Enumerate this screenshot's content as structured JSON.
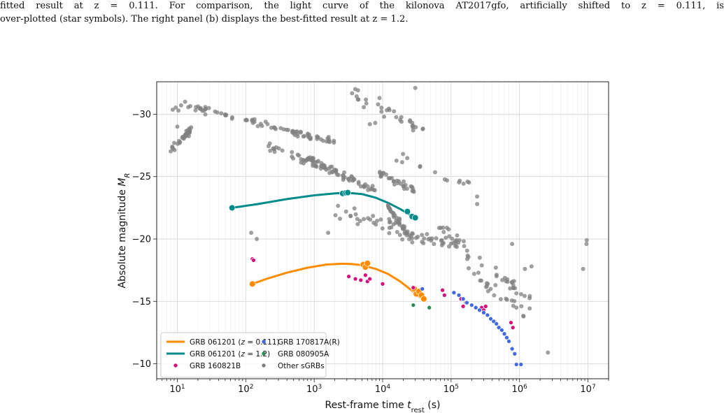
{
  "caption": {
    "line1": "fitted result at z = 0.111. For comparison, the light curve of the kilonova AT2017gfo, artificially shifted to z = 0.111, is",
    "line2": "over-plotted (star symbols). The right panel (b) displays the best-fitted result at z = 1.2."
  },
  "chart_data": {
    "type": "scatter",
    "xlabel": "Rest-frame time t_rest (s)",
    "ylabel": "Absolute magnitude M_R",
    "x_scale": "log",
    "xlim": [
      5,
      20000000
    ],
    "ylim": [
      -8.8,
      -32.6
    ],
    "x_ticks": [
      10,
      100,
      1000,
      10000,
      100000,
      1000000,
      10000000
    ],
    "x_tick_labels": [
      "10^1",
      "10^2",
      "10^3",
      "10^4",
      "10^5",
      "10^6",
      "10^7"
    ],
    "y_ticks": [
      -30,
      -25,
      -20,
      -15,
      -10
    ],
    "y_tick_labels": [
      "−30",
      "−25",
      "−20",
      "−15",
      "−10"
    ],
    "grid": true,
    "legend_position": "lower-left",
    "colors": {
      "orange": "#ff8c00",
      "teal": "#008b8b",
      "magenta": "#d6107c",
      "blue": "#4169e1",
      "green": "#2e8b57",
      "gray": "#808080"
    },
    "series": [
      {
        "name": "GRB 061201 (z = 0.111)",
        "kind": "line",
        "color": "#ff8c00",
        "points": [
          [
            125,
            -16.4
          ],
          [
            200,
            -16.8
          ],
          [
            400,
            -17.3
          ],
          [
            800,
            -17.7
          ],
          [
            1500,
            -17.95
          ],
          [
            2500,
            -18.02
          ],
          [
            3500,
            -18.0
          ],
          [
            5000,
            -17.9
          ],
          [
            8000,
            -17.6
          ],
          [
            12000,
            -17.2
          ],
          [
            18000,
            -16.6
          ],
          [
            25000,
            -16.0
          ],
          [
            32000,
            -15.5
          ],
          [
            38000,
            -15.2
          ]
        ]
      },
      {
        "name": "GRB 061201 (z = 1.2)",
        "kind": "line",
        "color": "#008b8b",
        "points": [
          [
            63,
            -22.5
          ],
          [
            150,
            -22.8
          ],
          [
            400,
            -23.2
          ],
          [
            1000,
            -23.5
          ],
          [
            2000,
            -23.65
          ],
          [
            3000,
            -23.7
          ],
          [
            5000,
            -23.6
          ],
          [
            8000,
            -23.3
          ],
          [
            12000,
            -22.9
          ],
          [
            18000,
            -22.4
          ],
          [
            24000,
            -22.0
          ],
          [
            30000,
            -21.7
          ]
        ]
      },
      {
        "name": "GRB 061201 (z = 0.111) data",
        "kind": "marker",
        "color": "#ff8c00",
        "points": [
          [
            125,
            -16.4
          ],
          [
            5200,
            -17.95
          ],
          [
            5600,
            -17.75
          ],
          [
            6000,
            -18.05
          ],
          [
            29000,
            -16.0
          ],
          [
            31000,
            -15.6
          ],
          [
            34000,
            -15.8
          ],
          [
            37000,
            -15.5
          ],
          [
            40000,
            -15.2
          ]
        ]
      },
      {
        "name": "GRB 061201 (z = 1.2) data",
        "kind": "marker",
        "color": "#008b8b",
        "points": [
          [
            63,
            -22.5
          ],
          [
            2600,
            -23.65
          ],
          [
            2900,
            -23.7
          ],
          [
            3100,
            -23.72
          ],
          [
            23000,
            -22.2
          ],
          [
            27000,
            -21.8
          ],
          [
            30000,
            -21.7
          ]
        ]
      },
      {
        "name": "GRB 160821B",
        "kind": "scatter",
        "color": "#d6107c",
        "points": [
          [
            125,
            -18.4
          ],
          [
            130,
            -18.3
          ],
          [
            3200,
            -17.0
          ],
          [
            4000,
            -16.8
          ],
          [
            4800,
            -16.7
          ],
          [
            5600,
            -17.1
          ],
          [
            6000,
            -16.6
          ],
          [
            6500,
            -16.8
          ],
          [
            10000,
            -16.4
          ],
          [
            28000,
            -16.1
          ],
          [
            75000,
            -15.9
          ],
          [
            80000,
            -15.5
          ],
          [
            140000,
            -15.2
          ],
          [
            150000,
            -14.6
          ],
          [
            165000,
            -14.9
          ],
          [
            280000,
            -14.5
          ],
          [
            300000,
            -14.3
          ],
          [
            320000,
            -14.6
          ],
          [
            750000,
            -13.3
          ],
          [
            800000,
            -12.9
          ]
        ]
      },
      {
        "name": "GRB 170817A(R)",
        "kind": "scatter",
        "color": "#4169e1",
        "points": [
          [
            38000,
            -16.0
          ],
          [
            110000,
            -15.7
          ],
          [
            130000,
            -15.5
          ],
          [
            150000,
            -15.2
          ],
          [
            170000,
            -14.9
          ],
          [
            200000,
            -14.7
          ],
          [
            230000,
            -14.5
          ],
          [
            260000,
            -14.3
          ],
          [
            300000,
            -14.1
          ],
          [
            340000,
            -13.9
          ],
          [
            380000,
            -13.6
          ],
          [
            420000,
            -13.4
          ],
          [
            460000,
            -13.2
          ],
          [
            500000,
            -12.9
          ],
          [
            550000,
            -12.7
          ],
          [
            600000,
            -12.4
          ],
          [
            650000,
            -12.1
          ],
          [
            700000,
            -11.8
          ],
          [
            780000,
            -11.2
          ],
          [
            850000,
            -10.8
          ],
          [
            900000,
            -9.95
          ],
          [
            1050000,
            -9.95
          ]
        ]
      },
      {
        "name": "GRB 080905A",
        "kind": "scatter",
        "color": "#2e8b57",
        "points": [
          [
            28000,
            -14.7
          ],
          [
            48000,
            -14.5
          ]
        ]
      },
      {
        "name": "Other sGRBs",
        "kind": "scatter",
        "color": "#808080",
        "seed": 7,
        "clusters": [
          {
            "x": [
              8,
              16
            ],
            "y": [
              -27.0,
              -28.8
            ],
            "n": 32,
            "spread": 0.45
          },
          {
            "x": [
              8,
              30
            ],
            "y": [
              -30.6,
              -30.4
            ],
            "n": 14,
            "spread": 0.5
          },
          {
            "x": [
              20,
              2000
            ],
            "y": [
              -30.4,
              -27.8
            ],
            "n": 70,
            "spread": 0.35
          },
          {
            "x": [
              200,
              3000
            ],
            "y": [
              -27.4,
              -25.2
            ],
            "n": 40,
            "spread": 0.5
          },
          {
            "x": [
              700,
              8000
            ],
            "y": [
              -26.6,
              -23.8
            ],
            "n": 55,
            "spread": 0.4
          },
          {
            "x": [
              9000,
              30000
            ],
            "y": [
              -25.2,
              -23.9
            ],
            "n": 30,
            "spread": 0.35
          },
          {
            "x": [
              12000,
              28000
            ],
            "y": [
              -22.6,
              -19.8
            ],
            "n": 35,
            "spread": 0.4
          },
          {
            "x": [
              2000,
              80000
            ],
            "y": [
              -22.5,
              -19.5
            ],
            "n": 55,
            "spread": 0.9
          },
          {
            "x": [
              60000,
              1500000
            ],
            "y": [
              -21.0,
              -15.0
            ],
            "n": 50,
            "spread": 0.9
          },
          {
            "x": [
              150000,
              1200000
            ],
            "y": [
              -18.0,
              -14.0
            ],
            "n": 22,
            "spread": 0.9
          },
          {
            "x": [
              3000,
              40000
            ],
            "y": [
              -32.0,
              -28.8
            ],
            "n": 30,
            "spread": 0.9
          },
          {
            "x": [
              15000,
              200000
            ],
            "y": [
              -26.6,
              -24.2
            ],
            "n": 14,
            "spread": 0.8
          }
        ],
        "points": [
          [
            9,
            -27.7
          ],
          [
            10,
            -29.0
          ],
          [
            13,
            -31.0
          ],
          [
            120,
            -20.5
          ],
          [
            145,
            -20.0
          ],
          [
            1600,
            -20.5
          ],
          [
            240000,
            -23.4
          ],
          [
            240000,
            -22.8
          ],
          [
            780000,
            -19.6
          ],
          [
            900000,
            -14.5
          ],
          [
            2600000,
            -10.9
          ],
          [
            8500000,
            -17.6
          ],
          [
            9500000,
            -19.6
          ],
          [
            9600000,
            -19.9
          ],
          [
            1500000,
            -17.8
          ],
          [
            1200000,
            -17.6
          ],
          [
            9000,
            -31.3
          ],
          [
            10500,
            -29.8
          ],
          [
            6500,
            -29.2
          ],
          [
            7800,
            -29.3
          ],
          [
            30000,
            -32.1
          ]
        ]
      }
    ],
    "legend": [
      {
        "label": "GRB 061201 (z = 0.111)",
        "marker": "line",
        "color": "#ff8c00"
      },
      {
        "label": "GRB 061201 (z = 1.2)",
        "marker": "line",
        "color": "#008b8b"
      },
      {
        "label": "GRB 160821B",
        "marker": "dot",
        "color": "#d6107c"
      },
      {
        "label": "GRB 170817A(R)",
        "marker": "dot",
        "color": "#4169e1"
      },
      {
        "label": "GRB 080905A",
        "marker": "dot",
        "color": "#2e8b57"
      },
      {
        "label": "Other sGRBs",
        "marker": "dot",
        "color": "#808080"
      }
    ]
  }
}
